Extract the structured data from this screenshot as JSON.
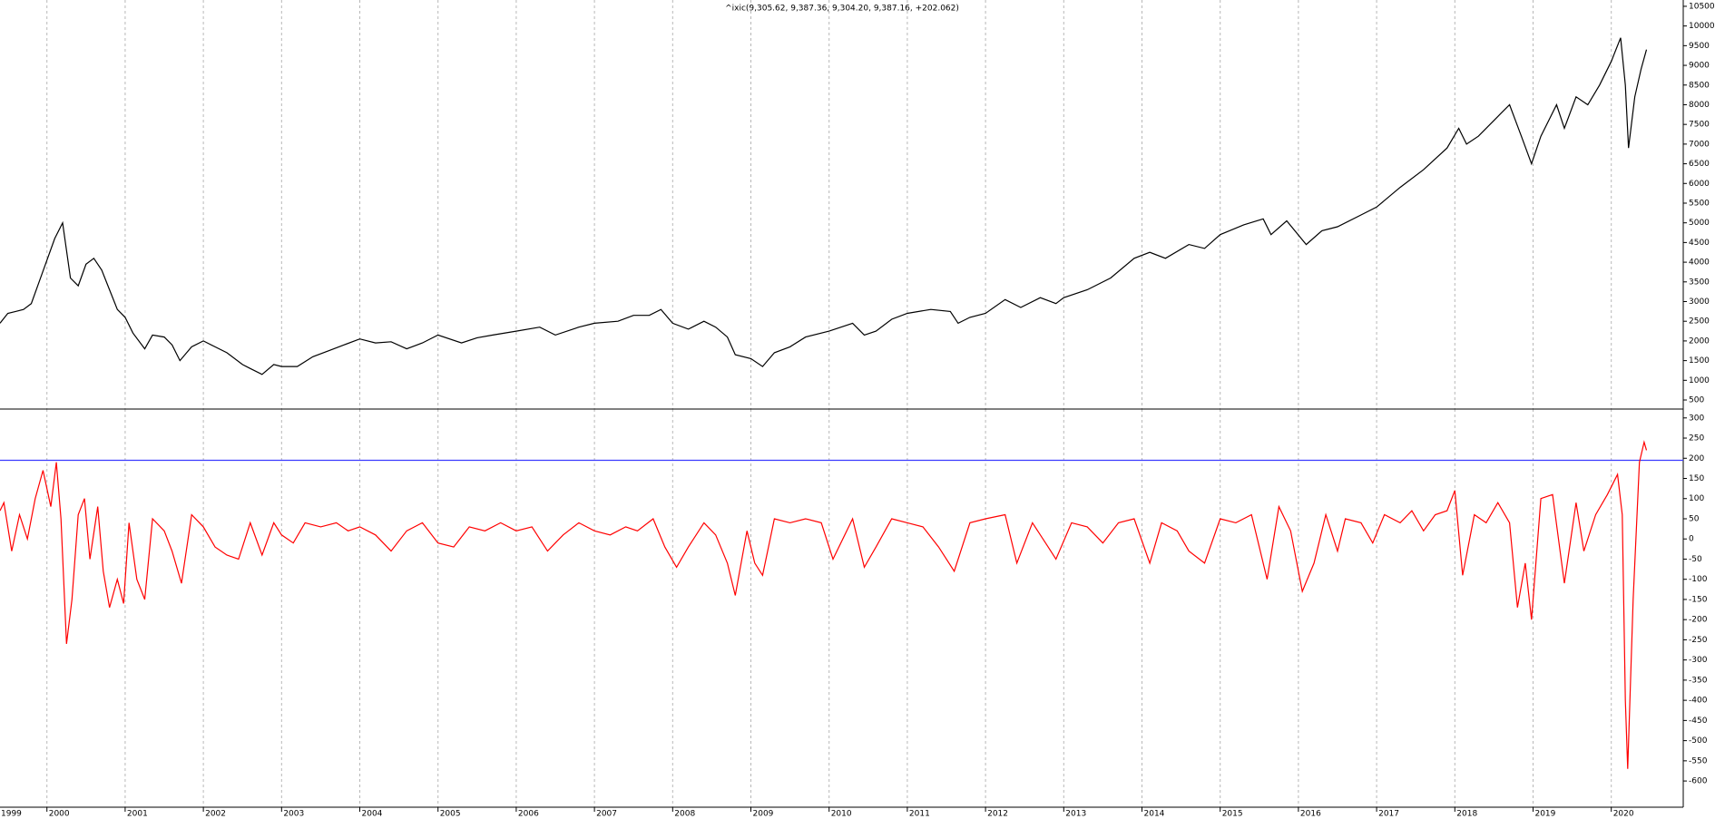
{
  "chart_data": [
    {
      "type": "line",
      "title": "^ixic(9,305.62, 9,387.36, 9,304.20, 9,387.16, +202.062)",
      "color": "#000000",
      "x": [
        1999.4,
        1999.5,
        1999.6,
        1999.7,
        1999.8,
        1999.9,
        2000.0,
        2000.1,
        2000.2,
        2000.25,
        2000.3,
        2000.4,
        2000.5,
        2000.6,
        2000.7,
        2000.8,
        2000.9,
        2001.0,
        2001.1,
        2001.25,
        2001.35,
        2001.5,
        2001.6,
        2001.7,
        2001.85,
        2002.0,
        2002.15,
        2002.3,
        2002.5,
        2002.6,
        2002.75,
        2002.9,
        2003.0,
        2003.2,
        2003.4,
        2003.6,
        2003.8,
        2004.0,
        2004.2,
        2004.4,
        2004.6,
        2004.8,
        2005.0,
        2005.3,
        2005.5,
        2005.7,
        2006.0,
        2006.3,
        2006.5,
        2006.8,
        2007.0,
        2007.3,
        2007.5,
        2007.7,
        2007.85,
        2008.0,
        2008.2,
        2008.4,
        2008.55,
        2008.7,
        2008.8,
        2009.0,
        2009.15,
        2009.3,
        2009.5,
        2009.7,
        2010.0,
        2010.3,
        2010.45,
        2010.6,
        2010.8,
        2011.0,
        2011.3,
        2011.55,
        2011.65,
        2011.8,
        2012.0,
        2012.25,
        2012.45,
        2012.7,
        2012.9,
        2013.0,
        2013.3,
        2013.6,
        2013.9,
        2014.1,
        2014.3,
        2014.6,
        2014.8,
        2015.0,
        2015.3,
        2015.55,
        2015.65,
        2015.85,
        2016.1,
        2016.3,
        2016.5,
        2016.8,
        2017.0,
        2017.3,
        2017.6,
        2017.9,
        2018.05,
        2018.15,
        2018.3,
        2018.6,
        2018.7,
        2018.85,
        2018.98,
        2019.1,
        2019.3,
        2019.4,
        2019.55,
        2019.7,
        2019.85,
        2020.0,
        2020.12,
        2020.18,
        2020.22,
        2020.3,
        2020.38,
        2020.45
      ],
      "values": [
        2450,
        2700,
        2750,
        2800,
        2950,
        3500,
        4050,
        4600,
        5000,
        4300,
        3600,
        3400,
        3950,
        4100,
        3800,
        3300,
        2800,
        2600,
        2200,
        1800,
        2150,
        2100,
        1900,
        1500,
        1850,
        2000,
        1850,
        1700,
        1400,
        1300,
        1150,
        1400,
        1350,
        1350,
        1600,
        1750,
        1900,
        2050,
        1950,
        1980,
        1800,
        1950,
        2150,
        1950,
        2080,
        2150,
        2250,
        2350,
        2150,
        2350,
        2450,
        2500,
        2650,
        2650,
        2800,
        2450,
        2300,
        2500,
        2350,
        2100,
        1650,
        1550,
        1350,
        1700,
        1850,
        2100,
        2250,
        2450,
        2150,
        2250,
        2550,
        2700,
        2800,
        2750,
        2450,
        2600,
        2700,
        3050,
        2850,
        3100,
        2950,
        3100,
        3300,
        3600,
        4100,
        4250,
        4100,
        4450,
        4350,
        4700,
        4950,
        5100,
        4700,
        5050,
        4450,
        4800,
        4900,
        5200,
        5400,
        5900,
        6350,
        6900,
        7400,
        7000,
        7200,
        7800,
        8000,
        7200,
        6500,
        7200,
        8000,
        7400,
        8200,
        8000,
        8500,
        9100,
        9700,
        8500,
        6900,
        8200,
        8900,
        9400
      ],
      "xlim": [
        1999.4,
        2020.92
      ],
      "ylim": [
        270,
        10660
      ],
      "yticks": [
        500,
        1000,
        1500,
        2000,
        2500,
        3000,
        3500,
        4000,
        4500,
        5000,
        5500,
        6000,
        6500,
        7000,
        7500,
        8000,
        8500,
        9000,
        9500,
        10000,
        10500
      ]
    },
    {
      "type": "line",
      "color": "#ff0000",
      "x": [
        1999.4,
        1999.45,
        1999.55,
        1999.65,
        1999.75,
        1999.85,
        1999.95,
        2000.05,
        2000.12,
        2000.18,
        2000.25,
        2000.32,
        2000.4,
        2000.48,
        2000.55,
        2000.65,
        2000.72,
        2000.8,
        2000.9,
        2000.98,
        2001.05,
        2001.15,
        2001.25,
        2001.35,
        2001.5,
        2001.6,
        2001.72,
        2001.85,
        2002.0,
        2002.15,
        2002.3,
        2002.45,
        2002.6,
        2002.75,
        2002.9,
        2003.0,
        2003.15,
        2003.3,
        2003.5,
        2003.7,
        2003.85,
        2004.0,
        2004.2,
        2004.4,
        2004.6,
        2004.8,
        2005.0,
        2005.2,
        2005.4,
        2005.6,
        2005.8,
        2006.0,
        2006.2,
        2006.4,
        2006.6,
        2006.8,
        2007.0,
        2007.2,
        2007.4,
        2007.55,
        2007.75,
        2007.9,
        2008.05,
        2008.2,
        2008.4,
        2008.55,
        2008.7,
        2008.8,
        2008.95,
        2009.05,
        2009.15,
        2009.3,
        2009.5,
        2009.7,
        2009.9,
        2010.05,
        2010.3,
        2010.45,
        2010.6,
        2010.8,
        2011.0,
        2011.2,
        2011.4,
        2011.6,
        2011.8,
        2012.0,
        2012.25,
        2012.4,
        2012.6,
        2012.8,
        2012.9,
        2013.1,
        2013.3,
        2013.5,
        2013.7,
        2013.9,
        2014.1,
        2014.25,
        2014.45,
        2014.6,
        2014.8,
        2015.0,
        2015.2,
        2015.4,
        2015.6,
        2015.75,
        2015.9,
        2016.05,
        2016.2,
        2016.35,
        2016.5,
        2016.6,
        2016.8,
        2016.95,
        2017.1,
        2017.3,
        2017.45,
        2017.6,
        2017.75,
        2017.9,
        2018.0,
        2018.1,
        2018.25,
        2018.4,
        2018.55,
        2018.7,
        2018.8,
        2018.9,
        2018.98,
        2019.1,
        2019.25,
        2019.4,
        2019.55,
        2019.65,
        2019.8,
        2019.95,
        2020.08,
        2020.14,
        2020.18,
        2020.21,
        2020.28,
        2020.36,
        2020.42,
        2020.45
      ],
      "values": [
        70,
        90,
        -30,
        60,
        0,
        100,
        170,
        80,
        190,
        50,
        -260,
        -150,
        60,
        100,
        -50,
        80,
        -80,
        -170,
        -100,
        -160,
        40,
        -100,
        -150,
        50,
        20,
        -30,
        -110,
        60,
        30,
        -20,
        -40,
        -50,
        40,
        -40,
        40,
        10,
        -10,
        40,
        30,
        40,
        20,
        30,
        10,
        -30,
        20,
        40,
        -10,
        -20,
        30,
        20,
        40,
        20,
        30,
        -30,
        10,
        40,
        20,
        10,
        30,
        20,
        50,
        -20,
        -70,
        -20,
        40,
        10,
        -60,
        -140,
        20,
        -60,
        -90,
        50,
        40,
        50,
        40,
        -50,
        50,
        -70,
        -20,
        50,
        40,
        30,
        -20,
        -80,
        40,
        50,
        60,
        -60,
        40,
        -20,
        -50,
        40,
        30,
        -10,
        40,
        50,
        -60,
        40,
        20,
        -30,
        -60,
        50,
        40,
        60,
        -100,
        80,
        20,
        -130,
        -60,
        60,
        -30,
        50,
        40,
        -10,
        60,
        40,
        70,
        20,
        60,
        70,
        120,
        -90,
        60,
        40,
        90,
        40,
        -170,
        -60,
        -200,
        100,
        110,
        -110,
        90,
        -30,
        60,
        110,
        160,
        60,
        -400,
        -570,
        -150,
        190,
        240,
        220
      ],
      "hline": {
        "value": 195,
        "color": "#3a3aff"
      },
      "xlim": [
        1999.4,
        2020.92
      ],
      "ylim": [
        -665,
        322
      ],
      "xticks": [
        1999,
        2000,
        2001,
        2002,
        2003,
        2004,
        2005,
        2006,
        2007,
        2008,
        2009,
        2010,
        2011,
        2012,
        2013,
        2014,
        2015,
        2016,
        2017,
        2018,
        2019,
        2020
      ],
      "yticks": [
        300,
        250,
        200,
        150,
        100,
        50,
        0,
        -50,
        -100,
        -150,
        -200,
        -250,
        -300,
        -350,
        -400,
        -450,
        -500,
        -550,
        -600
      ]
    }
  ]
}
